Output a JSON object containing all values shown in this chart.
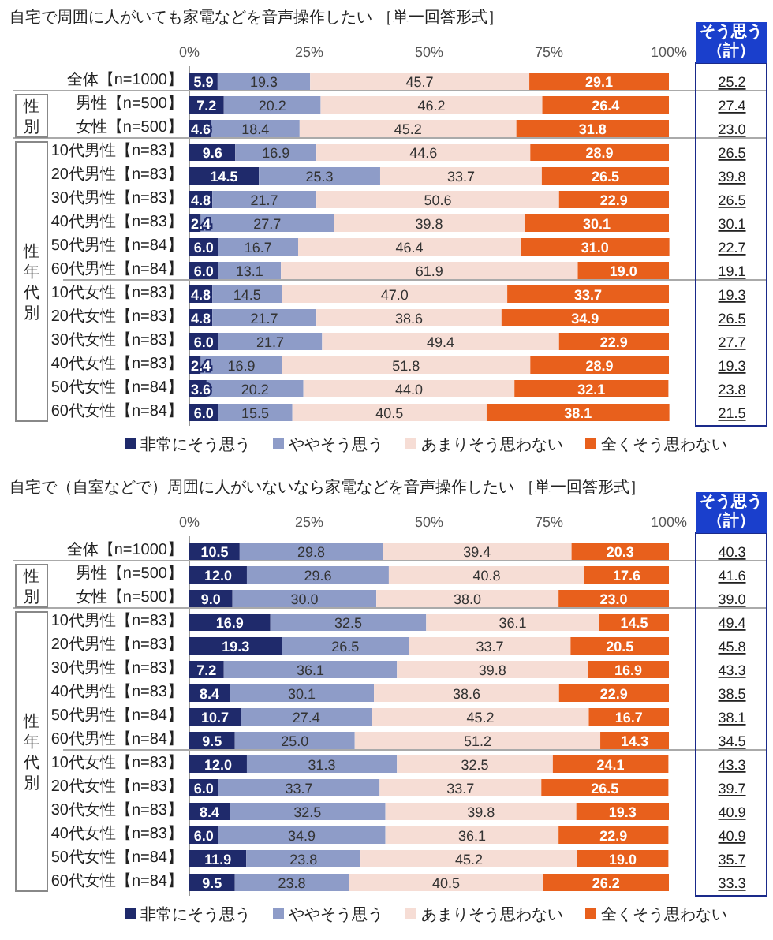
{
  "chart_data": [
    {
      "type": "bar",
      "orientation": "horizontal",
      "stacked": true,
      "title": "自宅で周囲に人がいても家電などを音声操作したい ［単一回答形式］",
      "categories": [
        "全体【n=1000】",
        "男性【n=500】",
        "女性【n=500】",
        "10代男性【n=83】",
        "20代男性【n=83】",
        "30代男性【n=83】",
        "40代男性【n=83】",
        "50代男性【n=84】",
        "60代男性【n=84】",
        "10代女性【n=83】",
        "20代女性【n=83】",
        "30代女性【n=83】",
        "40代女性【n=83】",
        "50代女性【n=84】",
        "60代女性【n=84】"
      ],
      "series": [
        {
          "name": "非常にそう思う",
          "color": "#1f2a6b",
          "values": [
            5.9,
            7.2,
            4.6,
            9.6,
            14.5,
            4.8,
            2.4,
            6.0,
            6.0,
            4.8,
            4.8,
            6.0,
            2.4,
            3.6,
            6.0
          ],
          "value_labels": [
            "5.9",
            "7.2",
            "4.6",
            "9.6",
            "14.5",
            "4.8",
            "2.4",
            "6.0",
            "6.0",
            "4.8",
            "4.8",
            "6.0",
            "2.4",
            "3.6",
            "6.0"
          ]
        },
        {
          "name": "ややそう思う",
          "color": "#8e9cc8",
          "values": [
            19.3,
            20.2,
            18.4,
            16.9,
            25.3,
            21.7,
            27.7,
            16.7,
            13.1,
            14.5,
            21.7,
            21.7,
            16.9,
            20.2,
            15.5
          ],
          "value_labels": [
            "19.3",
            "20.2",
            "18.4",
            "16.9",
            "25.3",
            "21.7",
            "27.7",
            "16.7",
            "13.1",
            "14.5",
            "21.7",
            "21.7",
            "16.9",
            "20.2",
            "15.5"
          ]
        },
        {
          "name": "あまりそう思わない",
          "color": "#f6ddd5",
          "values": [
            45.7,
            46.2,
            45.2,
            44.6,
            33.7,
            50.6,
            39.8,
            46.4,
            61.9,
            47.0,
            38.6,
            49.4,
            51.8,
            44.0,
            40.5
          ],
          "value_labels": [
            "45.7",
            "46.2",
            "45.2",
            "44.6",
            "33.7",
            "50.6",
            "39.8",
            "46.4",
            "61.9",
            "47.0",
            "38.6",
            "49.4",
            "51.8",
            "44.0",
            "40.5"
          ]
        },
        {
          "name": "全くそう思わない",
          "color": "#e8601c",
          "values": [
            29.1,
            26.4,
            31.8,
            28.9,
            26.5,
            22.9,
            30.1,
            31.0,
            19.0,
            33.7,
            34.9,
            22.9,
            28.9,
            32.1,
            38.1
          ],
          "value_labels": [
            "29.1",
            "26.4",
            "31.8",
            "28.9",
            "26.5",
            "22.9",
            "30.1",
            "31.0",
            "19.0",
            "33.7",
            "34.9",
            "22.9",
            "28.9",
            "32.1",
            "38.1"
          ]
        }
      ],
      "xlim": [
        0,
        100
      ],
      "xticks": [
        {
          "value": 0,
          "label": "0%"
        },
        {
          "value": 25,
          "label": "25%"
        },
        {
          "value": 50,
          "label": "50%"
        },
        {
          "value": 75,
          "label": "75%"
        },
        {
          "value": 100,
          "label": "100%"
        }
      ],
      "legend": "bottom",
      "annotations": [
        "性別",
        "性年代別",
        "そう思う（計）",
        "25.2",
        "27.4",
        "23.0",
        "26.5",
        "39.8",
        "26.5",
        "30.1",
        "22.7",
        "19.1",
        "19.3",
        "26.5",
        "27.7",
        "19.3",
        "23.8",
        "21.5"
      ]
    },
    {
      "type": "bar",
      "orientation": "horizontal",
      "stacked": true,
      "title": "自宅で（自室などで）周囲に人がいないなら家電などを音声操作したい ［単一回答形式］",
      "categories": [
        "全体【n=1000】",
        "男性【n=500】",
        "女性【n=500】",
        "10代男性【n=83】",
        "20代男性【n=83】",
        "30代男性【n=83】",
        "40代男性【n=83】",
        "50代男性【n=84】",
        "60代男性【n=84】",
        "10代女性【n=83】",
        "20代女性【n=83】",
        "30代女性【n=83】",
        "40代女性【n=83】",
        "50代女性【n=84】",
        "60代女性【n=84】"
      ],
      "series": [
        {
          "name": "非常にそう思う",
          "color": "#1f2a6b",
          "values": [
            10.5,
            12.0,
            9.0,
            16.9,
            19.3,
            7.2,
            8.4,
            10.7,
            9.5,
            12.0,
            6.0,
            8.4,
            6.0,
            11.9,
            9.5
          ],
          "value_labels": [
            "10.5",
            "12.0",
            "9.0",
            "16.9",
            "19.3",
            "7.2",
            "8.4",
            "10.7",
            "9.5",
            "12.0",
            "6.0",
            "8.4",
            "6.0",
            "11.9",
            "9.5"
          ]
        },
        {
          "name": "ややそう思う",
          "color": "#8e9cc8",
          "values": [
            29.8,
            29.6,
            30.0,
            32.5,
            26.5,
            36.1,
            30.1,
            27.4,
            25.0,
            31.3,
            33.7,
            32.5,
            34.9,
            23.8,
            23.8
          ],
          "value_labels": [
            "29.8",
            "29.6",
            "30.0",
            "32.5",
            "26.5",
            "36.1",
            "30.1",
            "27.4",
            "25.0",
            "31.3",
            "33.7",
            "32.5",
            "34.9",
            "23.8",
            "23.8"
          ]
        },
        {
          "name": "あまりそう思わない",
          "color": "#f6ddd5",
          "values": [
            39.4,
            40.8,
            38.0,
            36.1,
            33.7,
            39.8,
            38.6,
            45.2,
            51.2,
            32.5,
            33.7,
            39.8,
            36.1,
            45.2,
            40.5
          ],
          "value_labels": [
            "39.4",
            "40.8",
            "38.0",
            "36.1",
            "33.7",
            "39.8",
            "38.6",
            "45.2",
            "51.2",
            "32.5",
            "33.7",
            "39.8",
            "36.1",
            "45.2",
            "40.5"
          ]
        },
        {
          "name": "全くそう思わない",
          "color": "#e8601c",
          "values": [
            20.3,
            17.6,
            23.0,
            14.5,
            20.5,
            16.9,
            22.9,
            16.7,
            14.3,
            24.1,
            26.5,
            19.3,
            22.9,
            19.0,
            26.2
          ],
          "value_labels": [
            "20.3",
            "17.6",
            "23.0",
            "14.5",
            "20.5",
            "16.9",
            "22.9",
            "16.7",
            "14.3",
            "24.1",
            "26.5",
            "19.3",
            "22.9",
            "19.0",
            "26.2"
          ]
        }
      ],
      "xlim": [
        0,
        100
      ],
      "xticks": [
        {
          "value": 0,
          "label": "0%"
        },
        {
          "value": 25,
          "label": "25%"
        },
        {
          "value": 50,
          "label": "50%"
        },
        {
          "value": 75,
          "label": "75%"
        },
        {
          "value": 100,
          "label": "100%"
        }
      ],
      "legend": "bottom",
      "annotations": [
        "性別",
        "性年代別",
        "そう思う（計）",
        "40.3",
        "41.6",
        "39.0",
        "49.4",
        "45.8",
        "43.3",
        "38.5",
        "38.1",
        "34.5",
        "43.3",
        "39.7",
        "40.9",
        "40.9",
        "35.7",
        "33.3"
      ]
    }
  ]
}
